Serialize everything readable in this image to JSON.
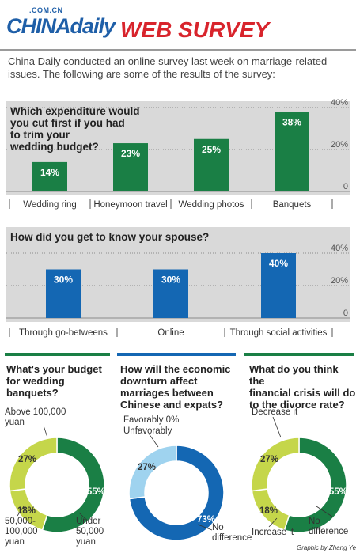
{
  "header": {
    "logo_small": ".COM.CN",
    "logo": "CHINAdaily",
    "title": "WEB SURVEY"
  },
  "intro": "China Daily conducted an online survey last week on marriage-related issues. The following are some of the results of the survey:",
  "colors": {
    "green": "#1a7f45",
    "blue": "#1467b3",
    "lightgreen": "#c5d64a",
    "lightblue": "#9fd3ef",
    "panel": "#d9d9d9",
    "red": "#d8242c"
  },
  "chart_data": [
    {
      "type": "bar",
      "title": "Which expenditure would you cut first if you had to trim your wedding budget?",
      "categories": [
        "Wedding ring",
        "Honeymoon travel",
        "Wedding photos",
        "Banquets"
      ],
      "values": [
        14,
        23,
        25,
        38
      ],
      "value_labels": [
        "14%",
        "23%",
        "25%",
        "38%"
      ],
      "ylim": [
        0,
        40
      ],
      "yticks": [
        "40%",
        "20%",
        "0"
      ],
      "color": "#1a7f45"
    },
    {
      "type": "bar",
      "title": "How did you get to know your spouse?",
      "categories": [
        "Through go-betweens",
        "Online",
        "Through social activities"
      ],
      "values": [
        30,
        30,
        40
      ],
      "value_labels": [
        "30%",
        "30%",
        "40%"
      ],
      "ylim": [
        0,
        40
      ],
      "yticks": [
        "40%",
        "20%",
        "0"
      ],
      "color": "#1467b3"
    },
    {
      "type": "pie",
      "title": "What's your budget for wedding banquets?",
      "slices": [
        {
          "label": "Under 50,000 yuan",
          "value": 55,
          "value_label": "55%",
          "color": "#1a7f45"
        },
        {
          "label": "50,000-100,000 yuan",
          "value": 18,
          "value_label": "18%",
          "color": "#c5d64a"
        },
        {
          "label": "Above 100,000 yuan",
          "value": 27,
          "value_label": "27%",
          "color": "#c5d64a"
        }
      ]
    },
    {
      "type": "pie",
      "title": "How will the economic downturn affect marriages between Chinese and expats?",
      "slices": [
        {
          "label": "No difference",
          "value": 73,
          "value_label": "73%",
          "color": "#1467b3"
        },
        {
          "label": "Unfavorably",
          "value": 27,
          "value_label": "27%",
          "color": "#9fd3ef"
        },
        {
          "label": "Favorably",
          "value": 0,
          "value_label": "0%",
          "color": "#ffffff"
        }
      ]
    },
    {
      "type": "pie",
      "title": "What do you think the financial crisis will do to the divorce rate?",
      "slices": [
        {
          "label": "No difference",
          "value": 55,
          "value_label": "55%",
          "color": "#1a7f45"
        },
        {
          "label": "Increase it",
          "value": 18,
          "value_label": "18%",
          "color": "#c5d64a"
        },
        {
          "label": "Decrease it",
          "value": 27,
          "value_label": "27%",
          "color": "#c5d64a"
        }
      ]
    }
  ],
  "bottom": {
    "q1_lines": [
      "What's your budget",
      "for wedding",
      "banquets?"
    ],
    "q2_lines": [
      "How will the economic",
      "downturn affect",
      "marriages between",
      "Chinese and expats?"
    ],
    "q3_lines": [
      "What do you think the",
      "financial crisis will do",
      "to the divorce rate?"
    ],
    "d1_above": [
      "Above 100,000",
      "yuan"
    ],
    "d1_mid": [
      "50,000-",
      "100,000",
      "yuan"
    ],
    "d1_under": [
      "Under",
      "50,000",
      "yuan"
    ],
    "d2_fav": "Favorably 0%",
    "d2_unfav": "Unfavorably",
    "d2_nodiff": [
      "No",
      "difference"
    ],
    "d3_decrease": "Decrease it",
    "d3_increase": "Increase it",
    "d3_nodiff": [
      "No",
      "difference"
    ]
  },
  "credit": "Graphic by Zhang Ye",
  "q1_lines": [
    "Which expenditure would",
    "you cut first if you had",
    "to trim your",
    "wedding budget?"
  ]
}
